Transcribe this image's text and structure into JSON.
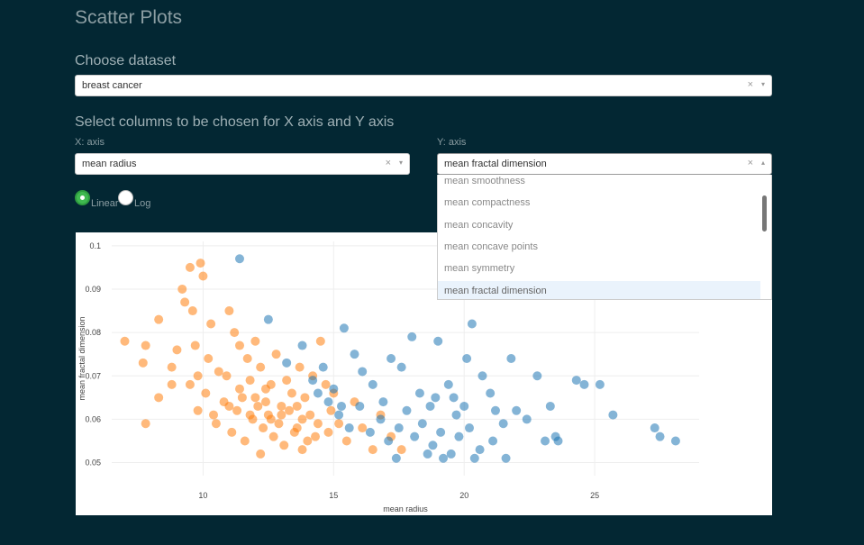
{
  "page": {
    "title": "Scatter Plots"
  },
  "dataset": {
    "heading": "Choose dataset",
    "selected": "breast cancer"
  },
  "columns": {
    "heading": "Select columns to be chosen for X axis and Y axis",
    "x_label": "X: axis",
    "x_selected": "mean radius",
    "y_label": "Y: axis",
    "y_selected": "mean fractal dimension",
    "y_options": [
      "mean smoothness",
      "mean compactness",
      "mean concavity",
      "mean concave points",
      "mean symmetry",
      "mean fractal dimension"
    ]
  },
  "scale": {
    "linear_label": "Linear",
    "log_label": "Log",
    "selected": "Linear"
  },
  "icons": {
    "clear": "×",
    "arrow_down": "▾",
    "arrow_up": "▴"
  },
  "colors": {
    "orange": "#ff7f0e",
    "blue": "#1f77b4",
    "accent": "#3fb950"
  },
  "chart_data": {
    "type": "scatter",
    "xlabel": "mean radius",
    "ylabel": "mean fractal dimension",
    "xlim": [
      6.5,
      29
    ],
    "ylim": [
      0.047,
      0.101
    ],
    "x_ticks": [
      10,
      15,
      20,
      25
    ],
    "y_ticks": [
      0.05,
      0.06,
      0.07,
      0.08,
      0.09,
      0.1
    ],
    "y_tick_labels": [
      "0.05",
      "0.06",
      "0.07",
      "0.08",
      "0.09",
      "0.1"
    ],
    "series": [
      {
        "color": "#ff7f0e",
        "points": [
          [
            7.0,
            0.078
          ],
          [
            7.8,
            0.077
          ],
          [
            7.7,
            0.073
          ],
          [
            7.8,
            0.059
          ],
          [
            8.3,
            0.083
          ],
          [
            8.3,
            0.065
          ],
          [
            8.8,
            0.072
          ],
          [
            8.8,
            0.068
          ],
          [
            9.0,
            0.076
          ],
          [
            9.2,
            0.09
          ],
          [
            9.3,
            0.087
          ],
          [
            9.5,
            0.095
          ],
          [
            9.6,
            0.085
          ],
          [
            9.7,
            0.077
          ],
          [
            9.8,
            0.07
          ],
          [
            9.9,
            0.096
          ],
          [
            10.0,
            0.093
          ],
          [
            10.3,
            0.082
          ],
          [
            10.6,
            0.071
          ],
          [
            11.0,
            0.085
          ],
          [
            11.2,
            0.08
          ],
          [
            11.4,
            0.077
          ],
          [
            11.5,
            0.065
          ],
          [
            11.7,
            0.074
          ],
          [
            11.8,
            0.069
          ],
          [
            12.0,
            0.078
          ],
          [
            12.2,
            0.072
          ],
          [
            12.4,
            0.067
          ],
          [
            12.6,
            0.06
          ],
          [
            12.8,
            0.075
          ],
          [
            13.0,
            0.063
          ],
          [
            13.2,
            0.069
          ],
          [
            13.5,
            0.057
          ],
          [
            13.7,
            0.072
          ],
          [
            13.9,
            0.065
          ],
          [
            14.1,
            0.061
          ],
          [
            14.3,
            0.056
          ],
          [
            14.5,
            0.078
          ],
          [
            14.7,
            0.068
          ],
          [
            14.9,
            0.062
          ],
          [
            15.2,
            0.059
          ],
          [
            15.5,
            0.055
          ],
          [
            15.8,
            0.064
          ],
          [
            16.1,
            0.058
          ],
          [
            16.5,
            0.053
          ],
          [
            9.8,
            0.062
          ],
          [
            10.1,
            0.066
          ],
          [
            10.5,
            0.059
          ],
          [
            10.8,
            0.064
          ],
          [
            11.1,
            0.057
          ],
          [
            11.3,
            0.062
          ],
          [
            11.6,
            0.055
          ],
          [
            11.9,
            0.06
          ],
          [
            12.1,
            0.063
          ],
          [
            12.3,
            0.058
          ],
          [
            12.5,
            0.061
          ],
          [
            12.7,
            0.056
          ],
          [
            12.9,
            0.059
          ],
          [
            13.1,
            0.054
          ],
          [
            13.3,
            0.062
          ],
          [
            13.6,
            0.058
          ],
          [
            13.8,
            0.06
          ],
          [
            14.0,
            0.055
          ],
          [
            14.4,
            0.059
          ],
          [
            14.8,
            0.057
          ],
          [
            9.5,
            0.068
          ],
          [
            10.2,
            0.074
          ],
          [
            10.9,
            0.07
          ],
          [
            11.4,
            0.067
          ],
          [
            12.0,
            0.065
          ],
          [
            12.6,
            0.068
          ],
          [
            13.4,
            0.066
          ],
          [
            14.2,
            0.07
          ],
          [
            15.0,
            0.066
          ],
          [
            10.4,
            0.061
          ],
          [
            11.0,
            0.063
          ],
          [
            11.8,
            0.061
          ],
          [
            12.4,
            0.064
          ],
          [
            13.0,
            0.061
          ],
          [
            13.6,
            0.063
          ],
          [
            12.2,
            0.052
          ],
          [
            13.8,
            0.053
          ],
          [
            16.8,
            0.061
          ],
          [
            17.2,
            0.056
          ],
          [
            17.6,
            0.053
          ]
        ]
      },
      {
        "color": "#1f77b4",
        "points": [
          [
            11.4,
            0.097
          ],
          [
            12.5,
            0.083
          ],
          [
            13.2,
            0.073
          ],
          [
            13.8,
            0.077
          ],
          [
            14.2,
            0.069
          ],
          [
            14.6,
            0.072
          ],
          [
            15.0,
            0.067
          ],
          [
            15.4,
            0.081
          ],
          [
            15.8,
            0.075
          ],
          [
            16.1,
            0.071
          ],
          [
            16.5,
            0.068
          ],
          [
            16.9,
            0.064
          ],
          [
            17.2,
            0.074
          ],
          [
            17.6,
            0.072
          ],
          [
            18.0,
            0.079
          ],
          [
            18.3,
            0.066
          ],
          [
            18.7,
            0.063
          ],
          [
            19.0,
            0.078
          ],
          [
            19.4,
            0.068
          ],
          [
            19.7,
            0.061
          ],
          [
            20.1,
            0.074
          ],
          [
            20.3,
            0.082
          ],
          [
            20.7,
            0.07
          ],
          [
            21.0,
            0.066
          ],
          [
            21.2,
            0.062
          ],
          [
            21.5,
            0.059
          ],
          [
            21.8,
            0.074
          ],
          [
            22.0,
            0.062
          ],
          [
            22.4,
            0.06
          ],
          [
            22.8,
            0.07
          ],
          [
            23.3,
            0.063
          ],
          [
            23.5,
            0.056
          ],
          [
            24.3,
            0.069
          ],
          [
            24.6,
            0.068
          ],
          [
            25.2,
            0.068
          ],
          [
            25.7,
            0.061
          ],
          [
            27.3,
            0.058
          ],
          [
            27.5,
            0.056
          ],
          [
            28.1,
            0.055
          ],
          [
            15.2,
            0.061
          ],
          [
            15.6,
            0.058
          ],
          [
            16.0,
            0.063
          ],
          [
            16.4,
            0.057
          ],
          [
            16.8,
            0.06
          ],
          [
            17.1,
            0.055
          ],
          [
            17.5,
            0.058
          ],
          [
            17.8,
            0.062
          ],
          [
            18.1,
            0.056
          ],
          [
            18.4,
            0.059
          ],
          [
            18.8,
            0.054
          ],
          [
            19.1,
            0.057
          ],
          [
            19.5,
            0.052
          ],
          [
            19.8,
            0.056
          ],
          [
            20.2,
            0.058
          ],
          [
            20.6,
            0.053
          ],
          [
            21.1,
            0.055
          ],
          [
            21.6,
            0.051
          ],
          [
            19.2,
            0.051
          ],
          [
            18.6,
            0.052
          ],
          [
            20.4,
            0.051
          ],
          [
            17.4,
            0.051
          ],
          [
            18.9,
            0.065
          ],
          [
            19.6,
            0.065
          ],
          [
            20.0,
            0.063
          ],
          [
            14.4,
            0.066
          ],
          [
            14.8,
            0.064
          ],
          [
            15.3,
            0.063
          ],
          [
            23.1,
            0.055
          ],
          [
            23.6,
            0.055
          ]
        ]
      }
    ]
  }
}
